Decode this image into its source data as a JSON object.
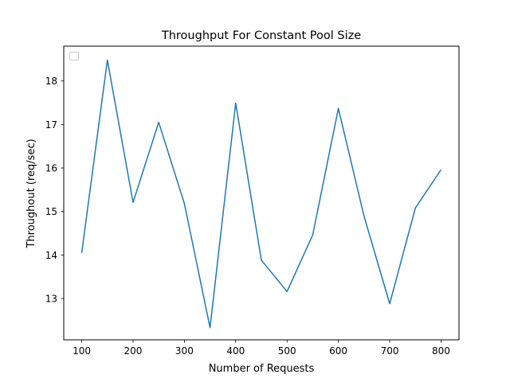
{
  "chart_data": {
    "type": "line",
    "title": "Throughput For Constant Pool Size",
    "xlabel": "Number of Requests",
    "ylabel": "Throughout (req/sec)",
    "x": [
      100,
      150,
      200,
      250,
      300,
      350,
      400,
      450,
      500,
      550,
      600,
      650,
      700,
      750,
      800
    ],
    "series": [
      {
        "values": [
          14.05,
          18.48,
          15.21,
          17.05,
          15.18,
          12.33,
          17.49,
          13.88,
          13.16,
          14.46,
          17.37,
          14.89,
          12.88,
          15.08,
          15.96
        ],
        "color": "#1f77b4"
      }
    ],
    "xlim": [
      65,
      835
    ],
    "ylim": [
      12.05,
      18.8
    ],
    "xticks": [
      100,
      200,
      300,
      400,
      500,
      600,
      700,
      800
    ],
    "yticks": [
      13,
      14,
      15,
      16,
      17,
      18
    ],
    "grid": false,
    "legend": {
      "placement": "top-left",
      "entries": []
    }
  }
}
